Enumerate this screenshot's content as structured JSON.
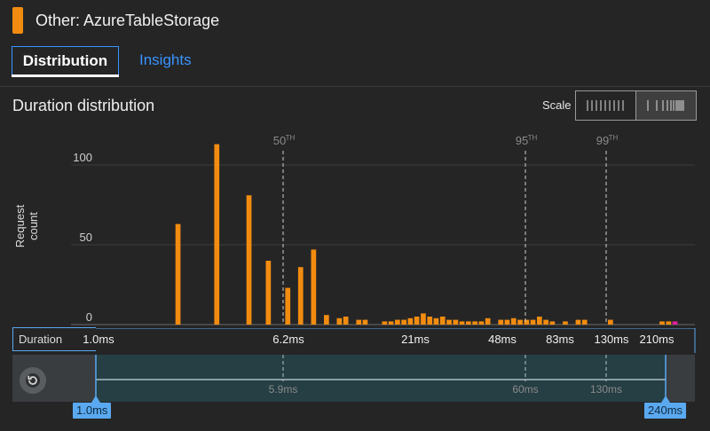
{
  "header": {
    "title": "Other: AzureTableStorage",
    "swatch_color": "#f28c10"
  },
  "tabs": [
    {
      "label": "Distribution",
      "active": true
    },
    {
      "label": "Insights",
      "active": false
    }
  ],
  "section": {
    "title": "Duration distribution"
  },
  "scale": {
    "label": "Scale",
    "options": [
      "linear",
      "log"
    ],
    "selected": "log"
  },
  "chart_data": {
    "type": "bar",
    "ylabel": "Request count",
    "xlabel": "Duration",
    "y_ticks": [
      "0",
      "50",
      "100"
    ],
    "ylim": [
      0,
      125
    ],
    "x_ticks": [
      "1.0ms",
      "6.2ms",
      "21ms",
      "48ms",
      "83ms",
      "130ms",
      "210ms"
    ],
    "percentiles": [
      {
        "label": "50",
        "sup": "TH"
      },
      {
        "label": "95",
        "sup": "TH"
      },
      {
        "label": "99",
        "sup": "TH"
      }
    ],
    "values": [
      0,
      0,
      0,
      0,
      0,
      0,
      0,
      0,
      0,
      0,
      0,
      0,
      0,
      0,
      0,
      0,
      0,
      0,
      0,
      0,
      0,
      63,
      0,
      0,
      0,
      0,
      0,
      113,
      0,
      0,
      0,
      0,
      81,
      0,
      0,
      40,
      0,
      0,
      23,
      0,
      36,
      0,
      47,
      0,
      6,
      0,
      4,
      5,
      0,
      3,
      3,
      0,
      0,
      2,
      2,
      3,
      3,
      4,
      5,
      7,
      5,
      4,
      5,
      3,
      3,
      2,
      2,
      2,
      2,
      4,
      0,
      3,
      3,
      4,
      3,
      3,
      3,
      5,
      3,
      2,
      0,
      2,
      0,
      3,
      3,
      0,
      0,
      0,
      3,
      0,
      0,
      0,
      0,
      0,
      0,
      0,
      2,
      2,
      2
    ],
    "bar_color": "#f28c10",
    "highlight_color": "#e0209a"
  },
  "brush": {
    "min_label": "1.0ms",
    "max_label": "240ms",
    "ticks": [
      "5.9ms",
      "60ms",
      "130ms"
    ]
  }
}
